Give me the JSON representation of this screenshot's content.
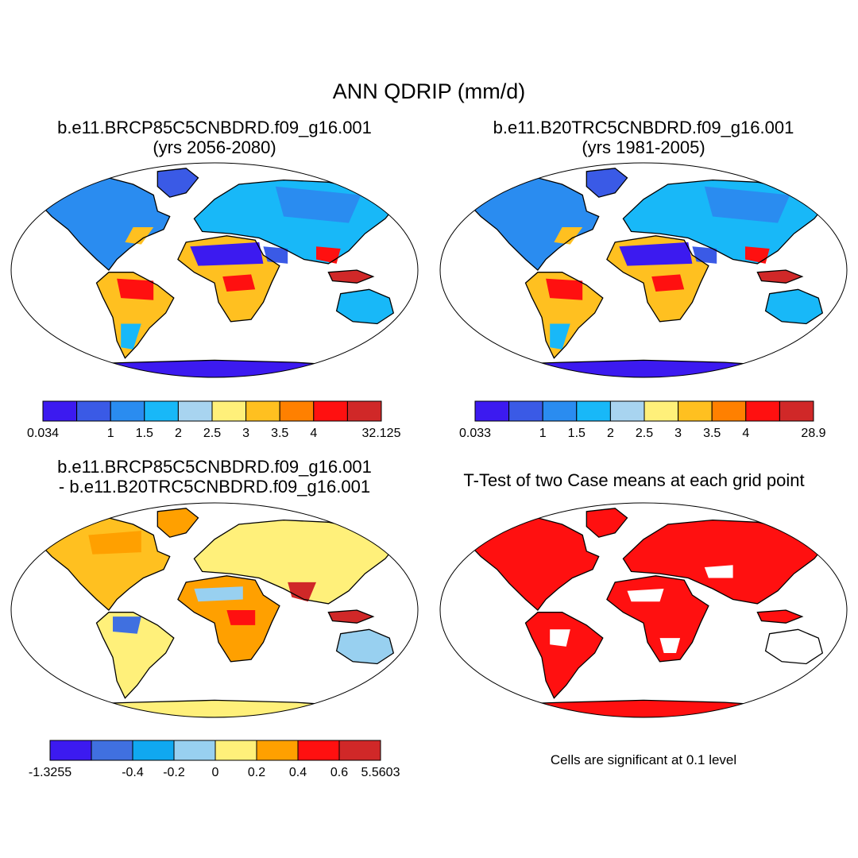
{
  "title": "ANN QDRIP (mm/d)",
  "panels": [
    {
      "id": "p1",
      "line1": "b.e11.BRCP85C5CNBDRD.f09_g16.001",
      "line2": "(yrs 2056-2080)",
      "labelbar": {
        "labels": [
          "0.034",
          "1",
          "1.5",
          "2",
          "2.5",
          "3",
          "3.5",
          "4",
          "32.125"
        ],
        "colors": [
          "#3c1af0",
          "#3a5ae6",
          "#2a8cf0",
          "#18b8f8",
          "#a8d4f0",
          "#fff07a",
          "#ffc020",
          "#ff8000",
          "#ff1010",
          "#d02828"
        ]
      }
    },
    {
      "id": "p2",
      "line1": "b.e11.B20TRC5CNBDRD.f09_g16.001",
      "line2": "(yrs 1981-2005)",
      "labelbar": {
        "labels": [
          "0.033",
          "1",
          "1.5",
          "2",
          "2.5",
          "3",
          "3.5",
          "4",
          "28.9"
        ],
        "colors": [
          "#3c1af0",
          "#3a5ae6",
          "#2a8cf0",
          "#18b8f8",
          "#a8d4f0",
          "#fff07a",
          "#ffc020",
          "#ff8000",
          "#ff1010",
          "#d02828"
        ]
      }
    },
    {
      "id": "p3",
      "line1": "b.e11.BRCP85C5CNBDRD.f09_g16.001",
      "line2": "- b.e11.B20TRC5CNBDRD.f09_g16.001",
      "labelbar": {
        "labels": [
          "-1.3255",
          "-0.4",
          "-0.2",
          "0",
          "0.2",
          "0.4",
          "0.6",
          "5.5603"
        ],
        "colors": [
          "#3c1af0",
          "#4070e0",
          "#10a8f0",
          "#98d0f0",
          "#fff07a",
          "#ffa000",
          "#ff1010",
          "#d02828"
        ]
      }
    },
    {
      "id": "p4",
      "line1": "T-Test of two Case means at each grid point",
      "line2": "",
      "note": "Cells are significant at 0.1 level"
    }
  ]
}
